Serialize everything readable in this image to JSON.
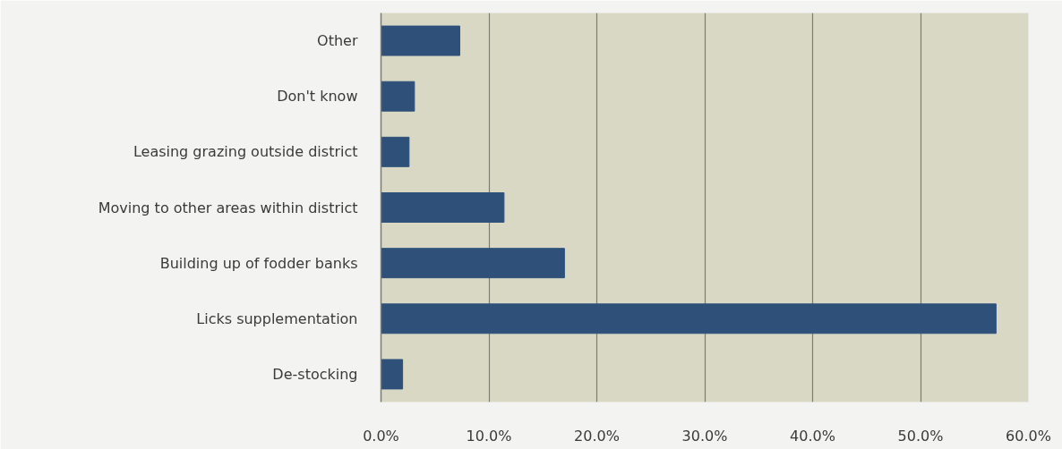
{
  "chart_data": {
    "type": "bar",
    "orientation": "horizontal",
    "categories": [
      "Other",
      "Don't know",
      "Leasing grazing outside district",
      "Moving to other areas within district",
      "Building up of fodder banks",
      "Licks supplementation",
      "De-stocking"
    ],
    "values": [
      7.3,
      3.1,
      2.6,
      11.4,
      17.0,
      57.0,
      2.0
    ],
    "color": "#2f5179",
    "xlim": [
      0,
      60
    ],
    "xticks": [
      {
        "value": 0,
        "label": "0.0%"
      },
      {
        "value": 10,
        "label": "10.0%"
      },
      {
        "value": 20,
        "label": "20.0%"
      },
      {
        "value": 30,
        "label": "30.0%"
      },
      {
        "value": 40,
        "label": "40.0%"
      },
      {
        "value": 50,
        "label": "50.0%"
      },
      {
        "value": 60,
        "label": "60.0%"
      }
    ],
    "grid": "x"
  }
}
